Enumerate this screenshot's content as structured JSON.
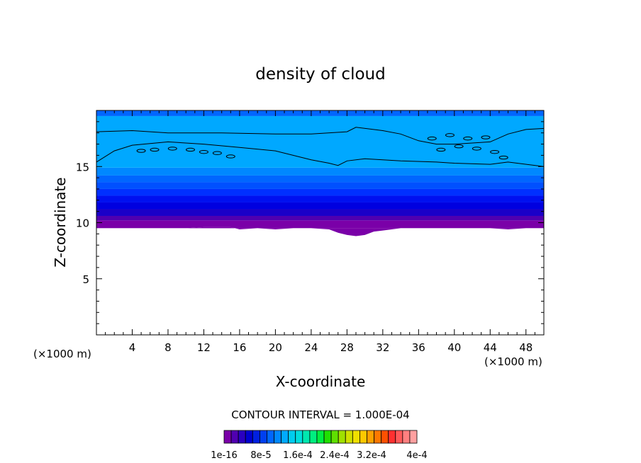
{
  "chart_data": {
    "type": "heatmap",
    "title": "density of cloud",
    "xlabel": "X-coordinate",
    "ylabel": "Z-coordinate",
    "x_unit_left": "(×1000 m)",
    "x_unit_right": "(×1000 m)",
    "xlim": [
      0,
      50
    ],
    "ylim": [
      0,
      20
    ],
    "x_ticks": [
      4,
      8,
      12,
      16,
      20,
      24,
      28,
      32,
      36,
      40,
      44,
      48
    ],
    "y_ticks": [
      5,
      10,
      15
    ],
    "contour_interval_label": "CONTOUR INTERVAL = 1.000E-04",
    "colorbar": {
      "labels": [
        "1e-16",
        "8e-5",
        "1.6e-4",
        "2.4e-4",
        "3.2e-4",
        "4e-4"
      ],
      "colors": [
        "#7a00a8",
        "#5000b0",
        "#2a00c0",
        "#0000d0",
        "#0020e0",
        "#0040f0",
        "#0066ff",
        "#0088ff",
        "#00aaff",
        "#00ccee",
        "#00dddd",
        "#00e8b0",
        "#00ee80",
        "#00ee40",
        "#20e000",
        "#60e000",
        "#a0e000",
        "#d0e000",
        "#f0e000",
        "#ffc800",
        "#ffa000",
        "#ff7800",
        "#ff5000",
        "#ff3030",
        "#ff5a5a",
        "#ff8080",
        "#ffa0a0"
      ]
    },
    "bands": [
      {
        "bottom": 9.5,
        "top": 10.2,
        "color": "#7a00a8"
      },
      {
        "bottom": 10.2,
        "top": 10.6,
        "color": "#5000b0"
      },
      {
        "bottom": 10.6,
        "top": 11.2,
        "color": "#1a00c8"
      },
      {
        "bottom": 11.2,
        "top": 11.8,
        "color": "#0000e0"
      },
      {
        "bottom": 11.8,
        "top": 12.4,
        "color": "#0010f0"
      },
      {
        "bottom": 12.4,
        "top": 13.0,
        "color": "#0030ff"
      },
      {
        "bottom": 13.0,
        "top": 13.6,
        "color": "#0050ff"
      },
      {
        "bottom": 13.6,
        "top": 14.2,
        "color": "#0066ff"
      },
      {
        "bottom": 14.2,
        "top": 14.9,
        "color": "#0088ff"
      },
      {
        "bottom": 14.9,
        "top": 19.5,
        "color": "#00a8ff"
      },
      {
        "bottom": 19.5,
        "top": 20.0,
        "color": "#0066ff"
      }
    ],
    "cloud_base": [
      [
        0,
        9.5
      ],
      [
        4,
        9.5
      ],
      [
        8,
        9.5
      ],
      [
        10,
        9.5
      ],
      [
        12,
        9.6
      ],
      [
        15,
        9.6
      ],
      [
        16,
        9.4
      ],
      [
        18,
        9.5
      ],
      [
        20,
        9.4
      ],
      [
        22,
        9.5
      ],
      [
        24,
        9.5
      ],
      [
        26,
        9.4
      ],
      [
        27,
        9.1
      ],
      [
        28,
        8.9
      ],
      [
        29,
        8.8
      ],
      [
        30,
        8.9
      ],
      [
        31,
        9.2
      ],
      [
        32,
        9.3
      ],
      [
        34,
        9.5
      ],
      [
        36,
        9.5
      ],
      [
        40,
        9.5
      ],
      [
        44,
        9.5
      ],
      [
        46,
        9.4
      ],
      [
        48,
        9.5
      ],
      [
        50,
        9.5
      ]
    ],
    "contour_upper": [
      [
        0,
        18.1
      ],
      [
        4,
        18.2
      ],
      [
        8,
        18.0
      ],
      [
        14,
        18.0
      ],
      [
        20,
        17.9
      ],
      [
        24,
        17.9
      ],
      [
        28,
        18.1
      ],
      [
        29,
        18.5
      ],
      [
        32,
        18.2
      ],
      [
        34,
        17.9
      ],
      [
        36,
        17.3
      ],
      [
        38,
        17.0
      ],
      [
        40,
        17.0
      ],
      [
        44,
        17.2
      ],
      [
        46,
        17.9
      ],
      [
        48,
        18.3
      ],
      [
        50,
        18.4
      ]
    ],
    "contour_lower": [
      [
        0,
        15.4
      ],
      [
        2,
        16.4
      ],
      [
        4,
        16.9
      ],
      [
        8,
        17.2
      ],
      [
        12,
        17.0
      ],
      [
        16,
        16.7
      ],
      [
        20,
        16.4
      ],
      [
        24,
        15.6
      ],
      [
        26,
        15.3
      ],
      [
        27,
        15.1
      ],
      [
        28,
        15.5
      ],
      [
        30,
        15.7
      ],
      [
        34,
        15.5
      ],
      [
        38,
        15.4
      ],
      [
        40,
        15.3
      ],
      [
        44,
        15.2
      ],
      [
        46,
        15.4
      ],
      [
        50,
        15.0
      ]
    ]
  }
}
